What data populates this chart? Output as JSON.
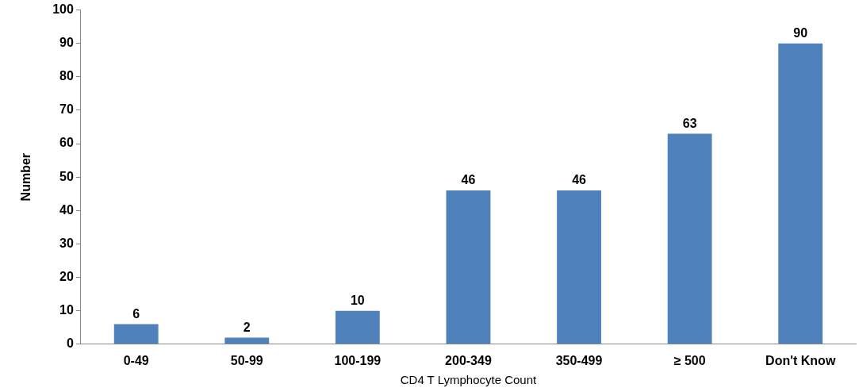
{
  "chart_data": {
    "type": "bar",
    "xlabel": "CD4 T Lymphocyte Count",
    "ylabel": "Number",
    "categories": [
      "0-49",
      "50-99",
      "100-199",
      "200-349",
      "350-499",
      "≥ 500",
      "Don't Know"
    ],
    "values": [
      6,
      2,
      10,
      46,
      46,
      63,
      90
    ],
    "color": "#4f81bd",
    "ylim": [
      0,
      100
    ],
    "yticks": [
      0,
      10,
      20,
      30,
      40,
      50,
      60,
      70,
      80,
      90,
      100
    ],
    "grid": false,
    "legend": false,
    "data_labels": true
  }
}
